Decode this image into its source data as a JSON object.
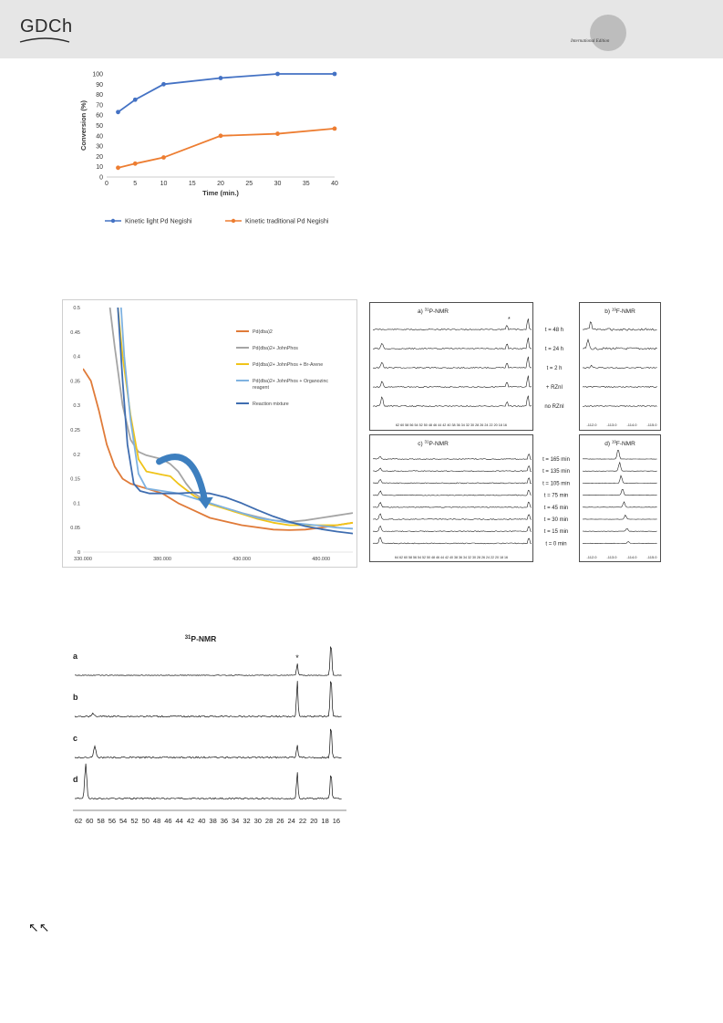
{
  "header": {
    "publisher": "GDCh",
    "edition_label": "International Edition"
  },
  "chart_data": [
    {
      "type": "line",
      "title": "",
      "xlabel": "Time (min.)",
      "ylabel": "Conversion (%)",
      "x": [
        2,
        5,
        10,
        20,
        30,
        40
      ],
      "xticks": [
        0,
        5,
        10,
        15,
        20,
        25,
        30,
        35,
        40
      ],
      "yticks": [
        0,
        10,
        20,
        30,
        40,
        50,
        60,
        70,
        80,
        90,
        100
      ],
      "xlim": [
        0,
        40
      ],
      "ylim": [
        0,
        100
      ],
      "legend_position": "bottom",
      "series": [
        {
          "name": "Kinetic light Pd Negishi",
          "color": "#4472c4",
          "values": [
            63,
            75,
            90,
            96,
            100,
            100
          ]
        },
        {
          "name": "Kinetic traditional Pd Negishi",
          "color": "#ed7d31",
          "values": [
            9,
            13,
            19,
            40,
            42,
            47
          ]
        }
      ]
    },
    {
      "type": "line",
      "title": "",
      "xlabel": "",
      "ylabel": "",
      "xlim": [
        330,
        500
      ],
      "ylim": [
        0,
        0.5
      ],
      "xticks": [
        "330.000",
        "380.000",
        "430.000",
        "480.000"
      ],
      "yticks": [
        "0",
        "0.05",
        "0.1",
        "0.15",
        "0.2",
        "0.25",
        "0.3",
        "0.35",
        "0.4",
        "0.45",
        "0.5"
      ],
      "legend_position": "top-right",
      "series": [
        {
          "name": "Pd(dba)2",
          "color": "#e07b39",
          "points": [
            [
              330,
              0.375
            ],
            [
              335,
              0.35
            ],
            [
              340,
              0.29
            ],
            [
              345,
              0.22
            ],
            [
              350,
              0.175
            ],
            [
              355,
              0.15
            ],
            [
              360,
              0.14
            ],
            [
              370,
              0.13
            ],
            [
              380,
              0.12
            ],
            [
              390,
              0.1
            ],
            [
              400,
              0.085
            ],
            [
              410,
              0.07
            ],
            [
              430,
              0.055
            ],
            [
              450,
              0.046
            ],
            [
              460,
              0.045
            ],
            [
              470,
              0.046
            ],
            [
              480,
              0.05
            ],
            [
              490,
              0.055
            ],
            [
              500,
              0.06
            ]
          ]
        },
        {
          "name": "Pd(dba)2+ JohnPhos",
          "color": "#a5a5a5",
          "points": [
            [
              347,
              0.5
            ],
            [
              350,
              0.42
            ],
            [
              355,
              0.3
            ],
            [
              360,
              0.23
            ],
            [
              365,
              0.205
            ],
            [
              370,
              0.198
            ],
            [
              380,
              0.19
            ],
            [
              385,
              0.18
            ],
            [
              390,
              0.165
            ],
            [
              395,
              0.14
            ],
            [
              400,
              0.12
            ],
            [
              410,
              0.1
            ],
            [
              420,
              0.09
            ],
            [
              430,
              0.08
            ],
            [
              440,
              0.072
            ],
            [
              450,
              0.065
            ],
            [
              460,
              0.062
            ],
            [
              470,
              0.065
            ],
            [
              480,
              0.07
            ],
            [
              490,
              0.075
            ],
            [
              500,
              0.08
            ]
          ]
        },
        {
          "name": "Pd(dba)2+ JohnPhos + Br-Arene",
          "color": "#f0c419",
          "points": [
            [
              352,
              0.5
            ],
            [
              355,
              0.4
            ],
            [
              360,
              0.28
            ],
            [
              365,
              0.19
            ],
            [
              370,
              0.165
            ],
            [
              380,
              0.158
            ],
            [
              385,
              0.155
            ],
            [
              390,
              0.14
            ],
            [
              400,
              0.115
            ],
            [
              410,
              0.098
            ],
            [
              420,
              0.088
            ],
            [
              430,
              0.078
            ],
            [
              440,
              0.068
            ],
            [
              450,
              0.06
            ],
            [
              460,
              0.055
            ],
            [
              470,
              0.055
            ],
            [
              480,
              0.055
            ],
            [
              490,
              0.055
            ],
            [
              500,
              0.06
            ]
          ]
        },
        {
          "name": "Pd(dba)2+ JohnPhos + Organozinc reagent",
          "color": "#7fb2e0",
          "points": [
            [
              354,
              0.5
            ],
            [
              356,
              0.4
            ],
            [
              360,
              0.27
            ],
            [
              365,
              0.16
            ],
            [
              370,
              0.13
            ],
            [
              380,
              0.125
            ],
            [
              390,
              0.12
            ],
            [
              400,
              0.11
            ],
            [
              410,
              0.1
            ],
            [
              420,
              0.09
            ],
            [
              430,
              0.08
            ],
            [
              440,
              0.07
            ],
            [
              450,
              0.065
            ],
            [
              460,
              0.06
            ],
            [
              470,
              0.057
            ],
            [
              480,
              0.054
            ],
            [
              490,
              0.05
            ],
            [
              500,
              0.048
            ]
          ]
        },
        {
          "name": "Reaction mixture",
          "color": "#3f6db0",
          "points": [
            [
              352,
              0.5
            ],
            [
              355,
              0.35
            ],
            [
              358,
              0.22
            ],
            [
              362,
              0.14
            ],
            [
              366,
              0.125
            ],
            [
              372,
              0.12
            ],
            [
              380,
              0.12
            ],
            [
              390,
              0.12
            ],
            [
              400,
              0.122
            ],
            [
              410,
              0.12
            ],
            [
              420,
              0.112
            ],
            [
              430,
              0.1
            ],
            [
              440,
              0.086
            ],
            [
              450,
              0.073
            ],
            [
              460,
              0.062
            ],
            [
              470,
              0.053
            ],
            [
              480,
              0.047
            ],
            [
              490,
              0.042
            ],
            [
              500,
              0.038
            ]
          ]
        }
      ]
    }
  ],
  "nmr_panels": {
    "a_title_prefix": "a) ",
    "a_title_sup": "31",
    "a_title_suffix": "P-NMR",
    "a_labels": [
      "t = 48 h",
      "t = 24 h",
      "t = 2 h",
      "+ RZnI",
      "no RZnI"
    ],
    "a_axis": "62 60 58 56 54 52 50 48 46 44 42 40 38 36 34 32 30 28 26 24 22 20 18 16",
    "asterisk": "*",
    "b_title_prefix": "b) ",
    "b_title_sup": "19",
    "b_title_suffix": "F-NMR",
    "b_axis": [
      "-112.0",
      "-113.0",
      "-114.0",
      "-115.0"
    ],
    "c_title_prefix": "c) ",
    "c_title_sup": "31",
    "c_title_suffix": "P-NMR",
    "c_labels": [
      "t = 165 min",
      "t = 135 min",
      "t = 105 min",
      "t = 75 min",
      "t = 45 min",
      "t = 30 min",
      "t = 15 min",
      "t = 0 min"
    ],
    "c_axis": "64 62 60 58 56 54 52 50 48 46 44 42 40 38 36 34 32 30 28 26 24 22 20 18 16",
    "d_title_prefix": "d) ",
    "d_title_sup": "19",
    "d_title_suffix": "F-NMR",
    "d_axis": [
      "-112.0",
      "-113.0",
      "-114.0",
      "-115.0"
    ]
  },
  "nmr_bottom": {
    "title_sup": "31",
    "title_suffix": "P-NMR",
    "row_labels": [
      "a",
      "b",
      "c",
      "d"
    ],
    "asterisk": "*",
    "axis_ticks": [
      "62",
      "60",
      "58",
      "56",
      "54",
      "52",
      "50",
      "48",
      "46",
      "44",
      "42",
      "40",
      "38",
      "36",
      "34",
      "32",
      "30",
      "28",
      "26",
      "24",
      "22",
      "20",
      "18",
      "16"
    ]
  },
  "nav": {
    "arrows": "↖↖"
  }
}
